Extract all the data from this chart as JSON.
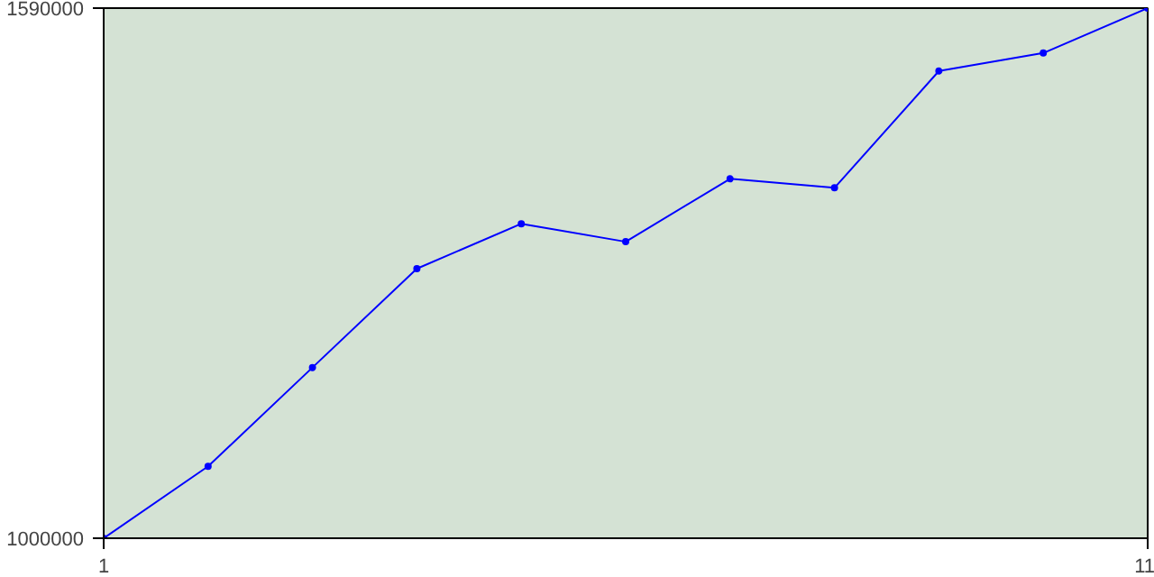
{
  "chart_data": {
    "type": "line",
    "x": [
      1,
      2,
      3,
      4,
      5,
      6,
      7,
      8,
      9,
      10,
      11
    ],
    "series": [
      {
        "color": "#0000ff",
        "values": [
          1000000,
          1080000,
          1190000,
          1300000,
          1350000,
          1330000,
          1400000,
          1390000,
          1520000,
          1540000,
          1590000
        ]
      }
    ],
    "xlim": [
      1,
      11
    ],
    "ylim": [
      1000000,
      1590000
    ],
    "xticks": [
      1,
      11
    ],
    "yticks": [
      1000000,
      1590000
    ],
    "marker": "circle",
    "line_style": "solid"
  }
}
